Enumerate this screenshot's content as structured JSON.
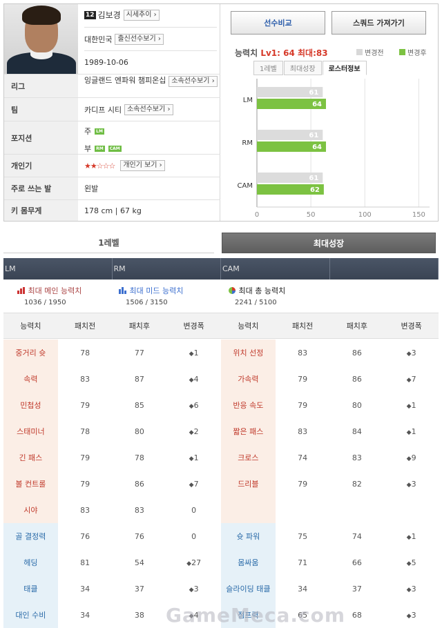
{
  "player": {
    "season": "12",
    "name": "김보경",
    "trend_btn": "시세추이",
    "country": "대한민국",
    "country_btn": "출신선수보기",
    "birth": "1989-10-06"
  },
  "rows": [
    {
      "label": "리그",
      "value": "잉글랜드 엔파워 챔피온십",
      "btn": "소속선수보기"
    },
    {
      "label": "팀",
      "value": "카디프 시티",
      "btn": "소속선수보기"
    },
    {
      "label": "포지션",
      "main_prefix": "주",
      "main": "LM",
      "sub_prefix": "부",
      "sub": [
        "RM",
        "CAM"
      ]
    },
    {
      "label": "개인기",
      "stars": "★★☆☆☆",
      "btn": "개인기 보기"
    },
    {
      "label": "주로 쓰는 발",
      "value": "왼발"
    },
    {
      "label": "키 몸무게",
      "value": "178 cm | 67 kg"
    }
  ],
  "buttons": {
    "compare": "선수비교",
    "squad": "스쿼드 가져가기"
  },
  "ability": {
    "prefix": "능력치",
    "lv": "Lv1: 64",
    "max": "최대:83",
    "legend_before": "변경전",
    "legend_after": "변경후"
  },
  "tabs": [
    "1레벨",
    "최대성장",
    "로스터정보"
  ],
  "chart_data": {
    "type": "bar",
    "categories": [
      "LM",
      "RM",
      "CAM"
    ],
    "series": [
      {
        "name": "변경전",
        "values": [
          61,
          61,
          61
        ],
        "color": "#dcdcdc"
      },
      {
        "name": "변경후",
        "values": [
          64,
          64,
          62
        ],
        "color": "#7cc242"
      }
    ],
    "xlim": [
      0,
      160
    ],
    "ticks": [
      "0",
      "50",
      "100",
      "150"
    ]
  },
  "section2": {
    "tab_level": "1레벨",
    "tab_max": "최대성장",
    "positions": [
      "LM",
      "RM",
      "CAM",
      ""
    ],
    "sum1": {
      "label": "최대 메인 능력치",
      "value": "1036 / 1950"
    },
    "sum2": {
      "label": "최대 미드 능력치",
      "value": "1506 / 3150"
    },
    "sum3": {
      "label": "최대 총 능력치",
      "value": "2241 / 5100"
    },
    "cols": [
      "능력치",
      "패치전",
      "패치후",
      "변경폭",
      "능력치",
      "패치전",
      "패치후",
      "변경폭"
    ]
  },
  "stats": [
    [
      {
        "n": "중거리 슛",
        "a": "78",
        "b": "77",
        "d": "1",
        "s": "down"
      },
      {
        "n": "위치 선정",
        "a": "83",
        "b": "86",
        "d": "3",
        "s": "up"
      }
    ],
    [
      {
        "n": "속력",
        "a": "83",
        "b": "87",
        "d": "4",
        "s": "up"
      },
      {
        "n": "가속력",
        "a": "79",
        "b": "86",
        "d": "7",
        "s": "up"
      }
    ],
    [
      {
        "n": "민첩성",
        "a": "79",
        "b": "85",
        "d": "6",
        "s": "up"
      },
      {
        "n": "반응 속도",
        "a": "79",
        "b": "80",
        "d": "1",
        "s": "up"
      }
    ],
    [
      {
        "n": "스태미너",
        "a": "78",
        "b": "80",
        "d": "2",
        "s": "up"
      },
      {
        "n": "짧은 패스",
        "a": "83",
        "b": "84",
        "d": "1",
        "s": "up"
      }
    ],
    [
      {
        "n": "긴 패스",
        "a": "79",
        "b": "78",
        "d": "1",
        "s": "down"
      },
      {
        "n": "크로스",
        "a": "74",
        "b": "83",
        "d": "9",
        "s": "up"
      }
    ],
    [
      {
        "n": "볼 컨트롤",
        "a": "79",
        "b": "86",
        "d": "7",
        "s": "up"
      },
      {
        "n": "드리블",
        "a": "79",
        "b": "82",
        "d": "3",
        "s": "up"
      }
    ],
    [
      {
        "n": "시야",
        "a": "83",
        "b": "83",
        "d": "0",
        "s": "zero"
      },
      {
        "n": "",
        "a": "",
        "b": "",
        "d": "",
        "s": "none"
      }
    ],
    [
      {
        "n": "골 결정력",
        "a": "76",
        "b": "76",
        "d": "0",
        "s": "zero"
      },
      {
        "n": "슛 파워",
        "a": "75",
        "b": "74",
        "d": "1",
        "s": "down"
      }
    ],
    [
      {
        "n": "헤딩",
        "a": "81",
        "b": "54",
        "d": "27",
        "s": "down"
      },
      {
        "n": "몸싸움",
        "a": "71",
        "b": "66",
        "d": "5",
        "s": "down"
      }
    ],
    [
      {
        "n": "태클",
        "a": "34",
        "b": "37",
        "d": "3",
        "s": "up"
      },
      {
        "n": "슬라이딩 태클",
        "a": "34",
        "b": "37",
        "d": "3",
        "s": "up"
      }
    ],
    [
      {
        "n": "대인 수비",
        "a": "34",
        "b": "38",
        "d": "4",
        "s": "up"
      },
      {
        "n": "점프력",
        "a": "65",
        "b": "68",
        "d": "3",
        "s": "up"
      }
    ]
  ],
  "watermark": "GameMeca.com"
}
